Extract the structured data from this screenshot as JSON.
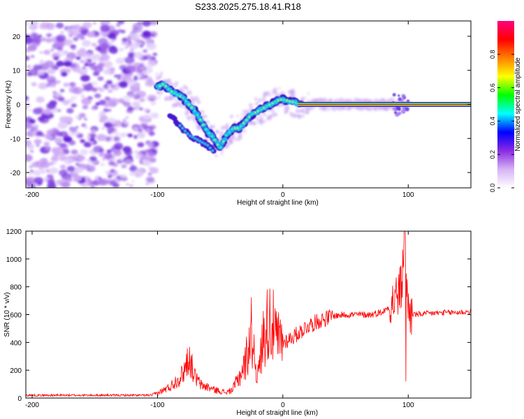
{
  "title": "S233.2025.275.18.41.R18",
  "chart_data": [
    {
      "type": "heatmap",
      "name": "spectrogram",
      "xlabel": "Height of straight line (km)",
      "ylabel": "Frequency (Hz)",
      "xlim": [
        -205,
        150
      ],
      "ylim": [
        -24.5,
        24.5
      ],
      "xticks": [
        -200,
        -100,
        0,
        100
      ],
      "yticks": [
        -20,
        -10,
        0,
        10,
        20
      ],
      "colorbar": {
        "label": "Normalized spectral amplitude",
        "range": [
          0,
          1
        ],
        "ticks": [
          0.0,
          0.2,
          0.4,
          0.6,
          0.8
        ],
        "colors": [
          "#ffffff",
          "#d6b3f5",
          "#8a2be2",
          "#0000ff",
          "#00ffff",
          "#00ff00",
          "#ffff00",
          "#ff8000",
          "#ff0000",
          "#ff0080"
        ]
      },
      "signal_track": {
        "x": [
          -100,
          -95,
          -90,
          -85,
          -80,
          -75,
          -70,
          -65,
          -60,
          -55,
          -50,
          -45,
          -40,
          -35,
          -30,
          -25,
          -20,
          -15,
          -10,
          -5,
          0,
          5,
          10,
          15,
          20,
          50,
          80,
          90,
          95,
          100,
          150
        ],
        "frequency": [
          5,
          6,
          4,
          3,
          2,
          0,
          -2,
          -5,
          -8,
          -10,
          -13,
          -9,
          -7,
          -7,
          -5,
          -3,
          -2,
          -1,
          0,
          1,
          1.5,
          1,
          0.5,
          0,
          0,
          0,
          0,
          0,
          -0.5,
          0,
          0
        ]
      },
      "secondary_track": {
        "x": [
          -90,
          -85,
          -80,
          -75,
          -70,
          -65,
          -60,
          -55
        ],
        "frequency": [
          -3,
          -5,
          -7,
          -9,
          -10,
          -11,
          -12,
          -14
        ]
      },
      "noise_region_x": [
        -205,
        -105
      ]
    },
    {
      "type": "line",
      "name": "snr",
      "xlabel": "Height of straight line (km)",
      "ylabel": "SNR (10 * v/v)",
      "xlim": [
        -205,
        150
      ],
      "ylim": [
        0,
        1200
      ],
      "xticks": [
        -200,
        -100,
        0,
        100
      ],
      "yticks": [
        0,
        200,
        400,
        600,
        800,
        1000,
        1200
      ],
      "color": "#ff0000",
      "series": [
        {
          "name": "SNR",
          "x": [
            -205,
            -150,
            -105,
            -100,
            -90,
            -80,
            -75,
            -70,
            -65,
            -60,
            -55,
            -50,
            -45,
            -40,
            -35,
            -30,
            -25,
            -20,
            -15,
            -10,
            -5,
            0,
            10,
            20,
            30,
            40,
            50,
            60,
            70,
            80,
            85,
            90,
            95,
            97,
            100,
            105,
            120,
            150
          ],
          "values": [
            20,
            20,
            20,
            35,
            80,
            170,
            300,
            150,
            90,
            80,
            60,
            50,
            40,
            60,
            150,
            250,
            480,
            150,
            480,
            580,
            420,
            400,
            450,
            520,
            560,
            590,
            600,
            600,
            600,
            620,
            660,
            720,
            800,
            1200,
            620,
            600,
            610,
            620
          ]
        }
      ]
    }
  ]
}
